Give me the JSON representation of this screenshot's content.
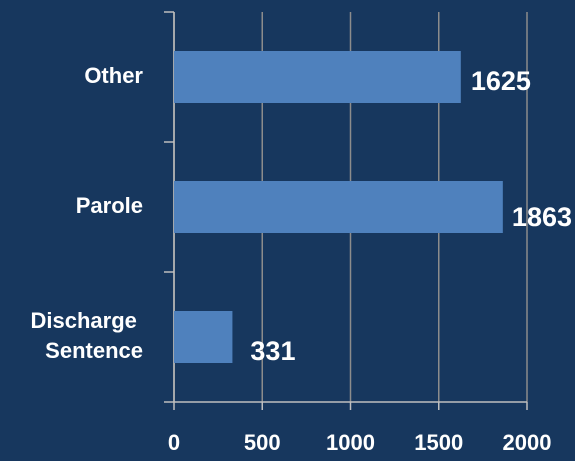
{
  "chart_data": {
    "type": "barh",
    "categories": [
      "Other",
      "Parole",
      "Discharge Sentence"
    ],
    "values": [
      1625,
      1863,
      331
    ],
    "color": "#4f81bd",
    "xlim": [
      0,
      2000
    ],
    "xticks": [
      0,
      500,
      1000,
      1500,
      2000
    ],
    "grid": true
  }
}
